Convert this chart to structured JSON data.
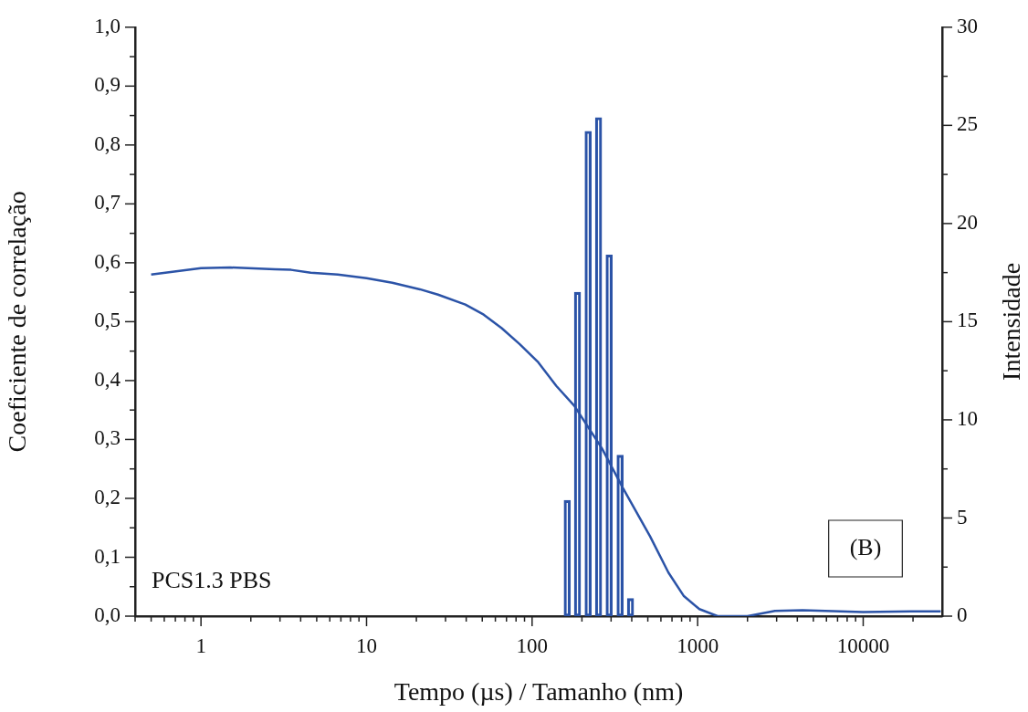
{
  "chart_data": {
    "type": "line",
    "xlabel": "Tempo (µs) / Tamanho (nm)",
    "ylabel": "Coeficiente de correlação",
    "y2label": "Intensidade",
    "log": "x",
    "grid": false,
    "legend": false,
    "marker": "none",
    "xlim": [
      0.4,
      30000
    ],
    "xticks": [
      {
        "value": 0.4,
        "label": null
      },
      {
        "value": 0.5,
        "label": null
      },
      {
        "value": 0.6,
        "label": null
      },
      {
        "value": 0.7,
        "label": null
      },
      {
        "value": 0.8,
        "label": null
      },
      {
        "value": 0.9,
        "label": null
      },
      1,
      {
        "value": 2,
        "label": null
      },
      {
        "value": 3,
        "label": null
      },
      {
        "value": 4,
        "label": null
      },
      {
        "value": 5,
        "label": null
      },
      {
        "value": 6,
        "label": null
      },
      {
        "value": 7,
        "label": null
      },
      {
        "value": 8,
        "label": null
      },
      {
        "value": 9,
        "label": null
      },
      10,
      {
        "value": 20,
        "label": null
      },
      {
        "value": 30,
        "label": null
      },
      {
        "value": 40,
        "label": null
      },
      {
        "value": 50,
        "label": null
      },
      {
        "value": 60,
        "label": null
      },
      {
        "value": 70,
        "label": null
      },
      {
        "value": 80,
        "label": null
      },
      {
        "value": 90,
        "label": null
      },
      100,
      {
        "value": 200,
        "label": null
      },
      {
        "value": 300,
        "label": null
      },
      {
        "value": 400,
        "label": null
      },
      {
        "value": 500,
        "label": null
      },
      {
        "value": 600,
        "label": null
      },
      {
        "value": 700,
        "label": null
      },
      {
        "value": 800,
        "label": null
      },
      {
        "value": 900,
        "label": null
      },
      1000,
      {
        "value": 2000,
        "label": null
      },
      {
        "value": 3000,
        "label": null
      },
      {
        "value": 4000,
        "label": null
      },
      {
        "value": 5000,
        "label": null
      },
      {
        "value": 6000,
        "label": null
      },
      {
        "value": 7000,
        "label": null
      },
      {
        "value": 8000,
        "label": null
      },
      {
        "value": 9000,
        "label": null
      },
      10000,
      {
        "value": 20000,
        "label": null
      }
    ],
    "ylim": [
      0,
      1
    ],
    "yticks": [
      {
        "value": 0,
        "label": "0,0"
      },
      {
        "value": 0.05,
        "label": null
      },
      {
        "value": 0.1,
        "label": "0,1"
      },
      {
        "value": 0.15,
        "label": null
      },
      {
        "value": 0.2,
        "label": "0,2"
      },
      {
        "value": 0.25,
        "label": null
      },
      {
        "value": 0.3,
        "label": "0,3"
      },
      {
        "value": 0.35,
        "label": null
      },
      {
        "value": 0.4,
        "label": "0,4"
      },
      {
        "value": 0.45,
        "label": null
      },
      {
        "value": 0.5,
        "label": "0,5"
      },
      {
        "value": 0.55,
        "label": null
      },
      {
        "value": 0.6,
        "label": "0,6"
      },
      {
        "value": 0.65,
        "label": null
      },
      {
        "value": 0.7,
        "label": "0,7"
      },
      {
        "value": 0.75,
        "label": null
      },
      {
        "value": 0.8,
        "label": "0,8"
      },
      {
        "value": 0.85,
        "label": null
      },
      {
        "value": 0.9,
        "label": "0,9"
      },
      {
        "value": 0.95,
        "label": null
      },
      {
        "value": 1,
        "label": "1,0"
      }
    ],
    "y2lim": [
      0,
      30
    ],
    "y2ticks": [
      0,
      {
        "value": 2.5,
        "label": null
      },
      5,
      {
        "value": 7.5,
        "label": null
      },
      10,
      {
        "value": 12.5,
        "label": null
      },
      15,
      {
        "value": 17.5,
        "label": null
      },
      20,
      {
        "value": 22.5,
        "label": null
      },
      25,
      {
        "value": 27.5,
        "label": null
      },
      30
    ],
    "annotations": [
      "PCS1.3 PBS",
      "(B)"
    ],
    "series": [
      {
        "type": "bar",
        "axis": "y2",
        "color": "#2b53a7",
        "x": [
          163,
          188,
          218,
          252,
          292,
          340,
          393
        ],
        "values": [
          5.9,
          16.5,
          24.7,
          25.4,
          18.4,
          8.2,
          0.9
        ]
      },
      {
        "color": "#2b53a7",
        "x": [
          0.5,
          1,
          1.5,
          2.8,
          3.5,
          4.6,
          6.7,
          10,
          14.3,
          21,
          27,
          39.5,
          51,
          65.5,
          84,
          109,
          140,
          180,
          264,
          353,
          517,
          666,
          826,
          1024,
          1320,
          2000,
          2930,
          4300,
          10000,
          19500,
          29400
        ],
        "values": [
          0.58,
          0.591,
          0.592,
          0.589,
          0.588,
          0.583,
          0.58,
          0.574,
          0.566,
          0.555,
          0.546,
          0.529,
          0.512,
          0.489,
          0.462,
          0.431,
          0.391,
          0.357,
          0.285,
          0.218,
          0.135,
          0.074,
          0.034,
          0.012,
          0,
          0,
          0.009,
          0.01,
          0.007,
          0.008,
          0.008
        ]
      }
    ]
  }
}
